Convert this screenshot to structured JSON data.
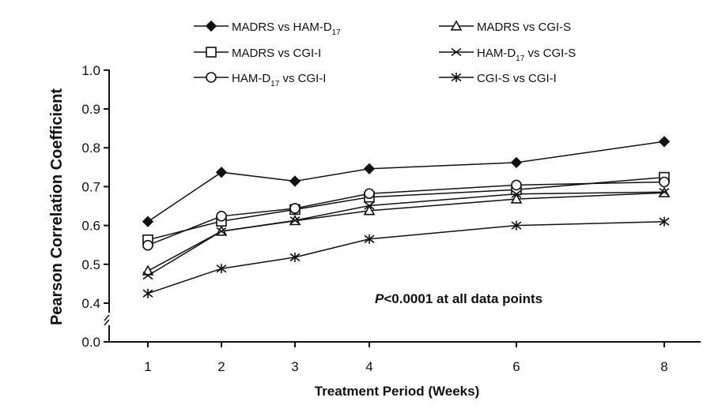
{
  "chart_data": {
    "type": "line",
    "title": "",
    "xlabel": "Treatment Period (Weeks)",
    "ylabel": "Pearson Correlation Coefficient",
    "x": [
      1,
      2,
      3,
      4,
      6,
      8
    ],
    "x_tick_labels": [
      "1",
      "2",
      "3",
      "4",
      "6",
      "8"
    ],
    "y_tick_labels": [
      "0.0",
      "0.4",
      "0.5",
      "0.6",
      "0.7",
      "0.8",
      "0.9",
      "1.0"
    ],
    "ylim": [
      0.0,
      1.0
    ],
    "y_axis_break": "between 0.0 and 0.4",
    "grid": false,
    "legend_position": "top",
    "annotation": {
      "italic": "P",
      "rest": "<0.0001 at all data points"
    },
    "series": [
      {
        "name": "MADRS  vs HAM-D17",
        "label_main": "MADRS  vs HAM-D",
        "label_sub": "17",
        "label_tail": "",
        "marker": "diamond-filled",
        "values": [
          0.61,
          0.737,
          0.714,
          0.746,
          0.762,
          0.816
        ]
      },
      {
        "name": "MADRS  vs CGI-I",
        "label_main": "MADRS  vs CGI-I",
        "label_sub": "",
        "label_tail": "",
        "marker": "square-open",
        "values": [
          0.563,
          0.611,
          0.641,
          0.673,
          0.692,
          0.724
        ]
      },
      {
        "name": "HAM-D17  vs CGI-I",
        "label_main": "HAM-D",
        "label_sub": "17",
        "label_tail": "  vs CGI-I",
        "marker": "circle-open",
        "values": [
          0.549,
          0.624,
          0.644,
          0.682,
          0.704,
          0.712
        ]
      },
      {
        "name": "MADRS  vs CGI-S",
        "label_main": "MADRS  vs CGI-S",
        "label_sub": "",
        "label_tail": "",
        "marker": "triangle-open",
        "values": [
          0.483,
          0.585,
          0.612,
          0.638,
          0.668,
          0.684
        ]
      },
      {
        "name": "HAM-D17  vs CGI-S",
        "label_main": "HAM-D",
        "label_sub": "17",
        "label_tail": "  vs CGI-S",
        "marker": "x",
        "values": [
          0.471,
          0.585,
          0.613,
          0.651,
          0.681,
          0.686
        ]
      },
      {
        "name": "CGI-S vs CGI-I",
        "label_main": "CGI-S vs CGI-I",
        "label_sub": "",
        "label_tail": "",
        "marker": "asterisk",
        "values": [
          0.425,
          0.489,
          0.518,
          0.565,
          0.6,
          0.61
        ]
      }
    ]
  }
}
